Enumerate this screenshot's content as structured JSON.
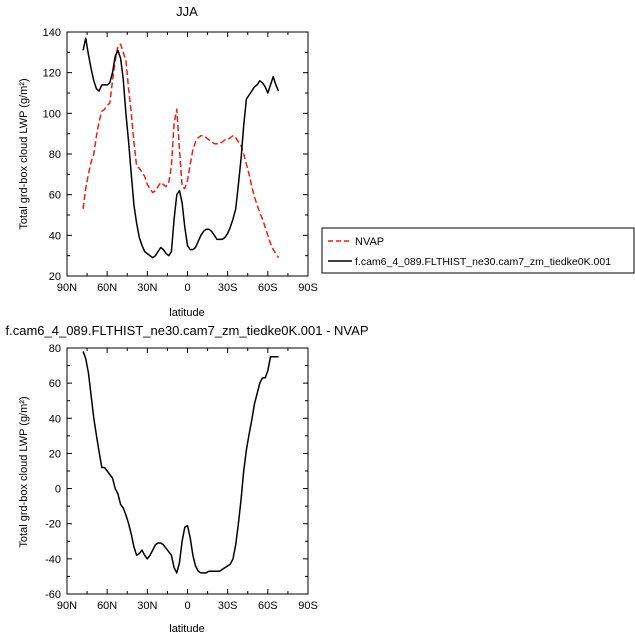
{
  "colors": {
    "nvap": "#ee1c1c",
    "model": "#000000",
    "axes": "#000000"
  },
  "chart_data": [
    {
      "type": "line",
      "title": "JJA",
      "xlabel": "latitude",
      "ylabel": "Total grd-box cloud LWP (g/m²)",
      "xlim": [
        90,
        -90
      ],
      "ylim": [
        20,
        140
      ],
      "xticks": [
        90,
        60,
        30,
        0,
        -30,
        -60,
        -90
      ],
      "xticklabels": [
        "90N",
        "60N",
        "30N",
        "0",
        "30S",
        "60S",
        "90S"
      ],
      "yticks": [
        20,
        40,
        60,
        80,
        100,
        120,
        140
      ],
      "yticklabels": [
        "20",
        "40",
        "60",
        "80",
        "100",
        "120",
        "140"
      ],
      "legend": [
        "NVAP",
        "f.cam6_4_089.FLTHIST_ne30.cam7_zm_tiedke0K.001"
      ],
      "series": [
        {
          "name": "NVAP",
          "style": "dashed",
          "color": "#ee1c1c",
          "x": [
            78,
            76,
            74,
            72,
            70,
            68,
            66,
            64,
            62,
            60,
            58,
            56,
            54,
            52,
            50,
            48,
            46,
            44,
            42,
            40,
            38,
            36,
            34,
            32,
            30,
            28,
            26,
            24,
            22,
            20,
            18,
            16,
            14,
            12,
            10,
            8,
            6,
            4,
            2,
            0,
            -2,
            -4,
            -6,
            -8,
            -10,
            -12,
            -14,
            -16,
            -18,
            -20,
            -22,
            -24,
            -26,
            -28,
            -30,
            -32,
            -34,
            -36,
            -38,
            -40,
            -42,
            -44,
            -46,
            -48,
            -50,
            -52,
            -54,
            -56,
            -58,
            -60,
            -62,
            -64,
            -66,
            -68
          ],
          "y": [
            53,
            63,
            70,
            76,
            80,
            89,
            96,
            101,
            102,
            104,
            105,
            116,
            126,
            133,
            134,
            130,
            126,
            112,
            100,
            86,
            74,
            73,
            71,
            69,
            65,
            63,
            61,
            62,
            64,
            66,
            65,
            64,
            66,
            74,
            95,
            102,
            82,
            64,
            63,
            67,
            75,
            82,
            86,
            88,
            89,
            89,
            88,
            87,
            86,
            85,
            85,
            85,
            86,
            87,
            87,
            88,
            89,
            88,
            86,
            84,
            80,
            75,
            70,
            64,
            59,
            55,
            51,
            48,
            44,
            40,
            36,
            33,
            31,
            29
          ],
          "note_y_in_units": "g/m2"
        },
        {
          "name": "f.cam6_4_089.FLTHIST_ne30.cam7_zm_tiedke0K.001",
          "style": "solid",
          "color": "#000000",
          "x": [
            78,
            76,
            74,
            72,
            70,
            68,
            66,
            64,
            62,
            60,
            58,
            56,
            54,
            52,
            50,
            48,
            46,
            44,
            42,
            40,
            38,
            36,
            34,
            32,
            30,
            28,
            26,
            24,
            22,
            20,
            18,
            16,
            14,
            12,
            10,
            8,
            6,
            4,
            2,
            0,
            -2,
            -4,
            -6,
            -8,
            -10,
            -12,
            -14,
            -16,
            -18,
            -20,
            -22,
            -24,
            -26,
            -28,
            -30,
            -32,
            -34,
            -36,
            -38,
            -40,
            -42,
            -44,
            -46,
            -48,
            -50,
            -52,
            -54,
            -56,
            -58,
            -60,
            -62,
            -64,
            -66,
            -68
          ],
          "y": [
            131,
            137,
            129,
            122,
            116,
            112,
            111,
            114,
            114,
            114,
            115,
            120,
            128,
            131,
            127,
            117,
            100,
            86,
            70,
            55,
            46,
            39,
            35,
            32,
            31,
            30,
            29,
            30,
            32,
            34,
            33,
            31,
            30,
            32,
            48,
            60,
            62,
            56,
            44,
            35,
            33,
            33,
            34,
            37,
            40,
            42,
            43,
            43,
            42,
            40,
            38,
            38,
            38,
            39,
            41,
            44,
            48,
            53,
            65,
            78,
            94,
            107,
            109,
            111,
            113,
            114,
            116,
            115,
            113,
            110,
            114,
            118,
            114,
            111
          ]
        }
      ]
    },
    {
      "type": "line",
      "title": "f.cam6_4_089.FLTHIST_ne30.cam7_zm_tiedke0K.001 - NVAP",
      "xlabel": "latitude",
      "ylabel": "Total grd-box cloud LWP (g/m²)",
      "xlim": [
        90,
        -90
      ],
      "ylim": [
        -60,
        80
      ],
      "xticks": [
        90,
        60,
        30,
        0,
        -30,
        -60,
        -90
      ],
      "xticklabels": [
        "90N",
        "60N",
        "30N",
        "0",
        "30S",
        "60S",
        "90S"
      ],
      "yticks": [
        -60,
        -40,
        -20,
        0,
        20,
        40,
        60,
        80
      ],
      "yticklabels": [
        "-60",
        "-40",
        "-20",
        "0",
        "20",
        "40",
        "60",
        "80"
      ],
      "series": [
        {
          "style": "solid",
          "color": "#000000",
          "x": [
            78,
            76,
            74,
            72,
            70,
            68,
            66,
            64,
            62,
            60,
            58,
            56,
            54,
            52,
            50,
            48,
            46,
            44,
            42,
            40,
            38,
            36,
            34,
            32,
            30,
            28,
            26,
            24,
            22,
            20,
            18,
            16,
            14,
            12,
            10,
            8,
            6,
            4,
            2,
            0,
            -2,
            -4,
            -6,
            -8,
            -10,
            -12,
            -14,
            -16,
            -18,
            -20,
            -22,
            -24,
            -26,
            -28,
            -30,
            -32,
            -34,
            -36,
            -38,
            -40,
            -42,
            -44,
            -46,
            -48,
            -50,
            -52,
            -54,
            -56,
            -58,
            -60,
            -62,
            -64,
            -66,
            -68
          ],
          "y": [
            78,
            74,
            66,
            53,
            40,
            30,
            21,
            12,
            12,
            10,
            8,
            6,
            0,
            -3,
            -9,
            -11,
            -15,
            -20,
            -26,
            -33,
            -38,
            -37,
            -35,
            -38,
            -40,
            -38,
            -35,
            -32,
            -31,
            -31,
            -32,
            -34,
            -36,
            -38,
            -45,
            -48,
            -42,
            -30,
            -22,
            -21,
            -28,
            -38,
            -44,
            -47,
            -48,
            -48,
            -48,
            -47,
            -47,
            -47,
            -47,
            -47,
            -46,
            -45,
            -44,
            -43,
            -40,
            -32,
            -20,
            -6,
            10,
            22,
            31,
            39,
            48,
            54,
            60,
            63,
            63,
            67,
            75,
            75,
            75,
            75
          ]
        }
      ]
    }
  ]
}
